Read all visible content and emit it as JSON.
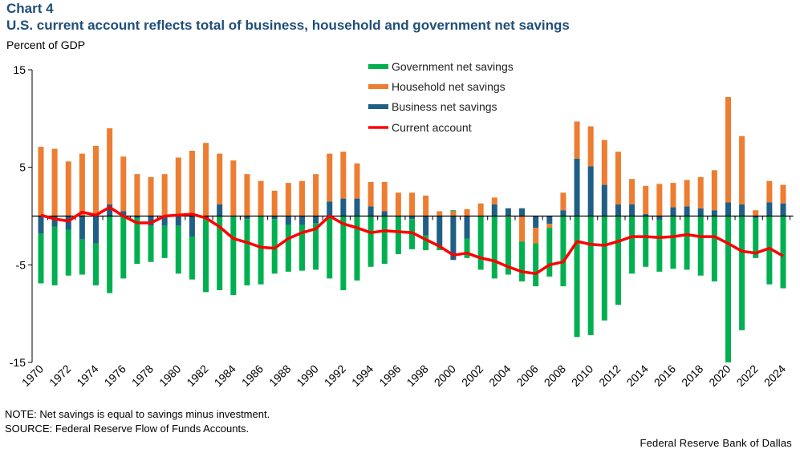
{
  "header": {
    "chart_number": "Chart 4",
    "title": "U.S. current account reflects total of business, household and government net savings",
    "unit_label": "Percent of GDP"
  },
  "footer": {
    "note": "NOTE: Net savings is equal to savings minus investment.",
    "source": "SOURCE: Federal Reserve Flow of Funds Accounts.",
    "credit": "Federal Reserve Bank of Dallas"
  },
  "colors": {
    "government": "#00b050",
    "household": "#ed7d31",
    "business": "#1f5f85",
    "current_account": "#ff0000",
    "title": "#1f4e79"
  },
  "chart_data": {
    "type": "bar",
    "stacked": true,
    "title": "U.S. current account reflects total of business, household and government net savings",
    "xlabel": "",
    "ylabel": "Percent of GDP",
    "ylim": [
      -15,
      15
    ],
    "yticks": [
      15,
      5,
      -5,
      -15
    ],
    "grid": false,
    "legend_position": "top-center",
    "categories": [
      1970,
      1971,
      1972,
      1973,
      1974,
      1975,
      1976,
      1977,
      1978,
      1979,
      1980,
      1981,
      1982,
      1983,
      1984,
      1985,
      1986,
      1987,
      1988,
      1989,
      1990,
      1991,
      1992,
      1993,
      1994,
      1995,
      1996,
      1997,
      1998,
      1999,
      2000,
      2001,
      2002,
      2003,
      2004,
      2005,
      2006,
      2007,
      2008,
      2009,
      2010,
      2011,
      2012,
      2013,
      2014,
      2015,
      2016,
      2017,
      2018,
      2019,
      2020,
      2021,
      2022,
      2023,
      2024
    ],
    "xtick_labels": [
      "1970",
      "1972",
      "1974",
      "1976",
      "1978",
      "1980",
      "1982",
      "1984",
      "1986",
      "1988",
      "1990",
      "1992",
      "1994",
      "1996",
      "1998",
      "2000",
      "2002",
      "2004",
      "2006",
      "2008",
      "2010",
      "2012",
      "2014",
      "2016",
      "2018",
      "2020",
      "2022",
      "2024"
    ],
    "series": [
      {
        "name": "Government net savings",
        "key": "government",
        "kind": "bar",
        "values": [
          -5.1,
          -6.0,
          -4.7,
          -3.6,
          -4.3,
          -7.9,
          -6.4,
          -4.7,
          -3.7,
          -3.3,
          -4.9,
          -4.4,
          -7.6,
          -7.6,
          -8.0,
          -6.8,
          -6.9,
          -5.6,
          -4.8,
          -4.7,
          -4.8,
          -6.4,
          -7.6,
          -6.6,
          -5.2,
          -4.9,
          -3.8,
          -3.1,
          -1.5,
          -0.4,
          0.1,
          -2.0,
          -5.5,
          -6.4,
          -5.9,
          -4.1,
          -4.4,
          -5.0,
          -7.2,
          -12.4,
          -12.2,
          -10.7,
          -9.1,
          -5.9,
          -5.2,
          -5.3,
          -5.4,
          -5.5,
          -6.1,
          -6.7,
          -15.0,
          -11.7,
          -4.1,
          -7.0,
          -7.4
        ]
      },
      {
        "name": "Household net savings",
        "key": "household",
        "kind": "bar",
        "values": [
          7.1,
          6.9,
          5.6,
          6.4,
          7.2,
          7.8,
          5.6,
          4.3,
          4.0,
          4.3,
          6.0,
          6.7,
          7.5,
          5.2,
          5.7,
          4.3,
          3.6,
          2.6,
          3.4,
          3.6,
          4.3,
          4.9,
          4.8,
          3.6,
          2.5,
          3.0,
          2.4,
          2.4,
          2.1,
          0.5,
          0.5,
          0.7,
          1.3,
          0.7,
          -0.1,
          -2.6,
          -1.6,
          -0.4,
          1.8,
          3.8,
          4.1,
          4.6,
          5.4,
          2.6,
          2.9,
          3.3,
          2.5,
          2.7,
          3.2,
          4.1,
          10.8,
          7.0,
          0.6,
          2.2,
          1.9
        ]
      },
      {
        "name": "Business net savings",
        "key": "business",
        "kind": "bar",
        "values": [
          -1.8,
          -1.1,
          -1.4,
          -2.4,
          -2.8,
          1.2,
          0.5,
          -0.2,
          -1.0,
          -1.0,
          -1.0,
          -2.1,
          -0.2,
          1.2,
          -0.1,
          -0.3,
          -0.1,
          -0.3,
          -0.9,
          -0.9,
          -0.7,
          1.5,
          1.8,
          1.8,
          1.0,
          0.5,
          -0.1,
          -0.3,
          -2.0,
          -3.1,
          -4.5,
          -2.3,
          0.0,
          1.2,
          0.8,
          0.8,
          -1.2,
          -0.8,
          0.6,
          5.9,
          5.1,
          3.2,
          1.2,
          1.2,
          0.2,
          -0.4,
          0.9,
          1.0,
          0.8,
          0.6,
          1.4,
          1.2,
          -0.2,
          1.4,
          1.3
        ]
      },
      {
        "name": "Current account",
        "key": "current_account",
        "kind": "line",
        "values": [
          0.1,
          -0.3,
          -0.5,
          0.4,
          0.1,
          0.9,
          0.0,
          -0.7,
          -0.7,
          0.0,
          0.1,
          0.2,
          -0.2,
          -1.1,
          -2.3,
          -2.7,
          -3.2,
          -3.3,
          -2.3,
          -1.7,
          -1.3,
          0.0,
          -0.8,
          -1.2,
          -1.7,
          -1.5,
          -1.6,
          -1.7,
          -2.4,
          -3.1,
          -4.0,
          -3.8,
          -4.3,
          -4.6,
          -5.2,
          -5.7,
          -5.9,
          -5.0,
          -4.7,
          -2.6,
          -2.9,
          -3.0,
          -2.6,
          -2.1,
          -2.1,
          -2.2,
          -2.1,
          -1.9,
          -2.1,
          -2.1,
          -2.8,
          -3.6,
          -3.8,
          -3.3,
          -4.1
        ]
      }
    ]
  }
}
